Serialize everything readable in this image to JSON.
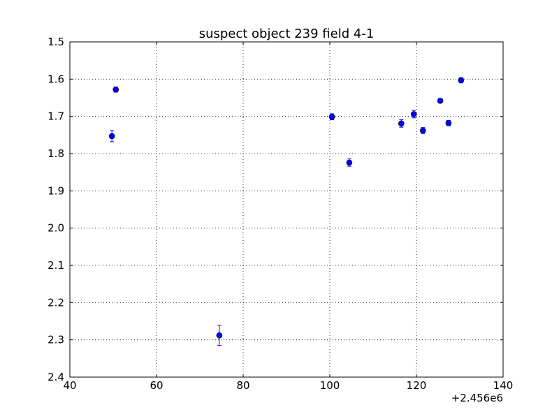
{
  "chart_data": {
    "type": "errorbar-scatter",
    "title": "suspect object 239 field 4-1",
    "x_offset_label": "+2.456e6",
    "series": [
      {
        "color": "#0000ff",
        "x": [
          49.7,
          50.6,
          74.5,
          100.5,
          104.5,
          116.5,
          119.4,
          121.5,
          125.5,
          127.4,
          130.3
        ],
        "values": [
          1.753,
          1.628,
          2.288,
          1.701,
          1.824,
          1.719,
          1.694,
          1.738,
          1.658,
          1.718,
          1.603
        ],
        "errors": [
          0.015,
          0.007,
          0.027,
          0.008,
          0.01,
          0.01,
          0.01,
          0.008,
          0.006,
          0.007,
          0.007
        ]
      }
    ],
    "xlim": [
      40,
      140
    ],
    "xticks": [
      40,
      60,
      80,
      100,
      120,
      140
    ],
    "ylim": [
      2.4,
      1.5
    ],
    "yticks": [
      1.5,
      1.6,
      1.7,
      1.8,
      1.9,
      {
        "value": 2,
        "label": "2.0"
      },
      2.1,
      2.2,
      2.3,
      2.4
    ],
    "grid": true
  }
}
